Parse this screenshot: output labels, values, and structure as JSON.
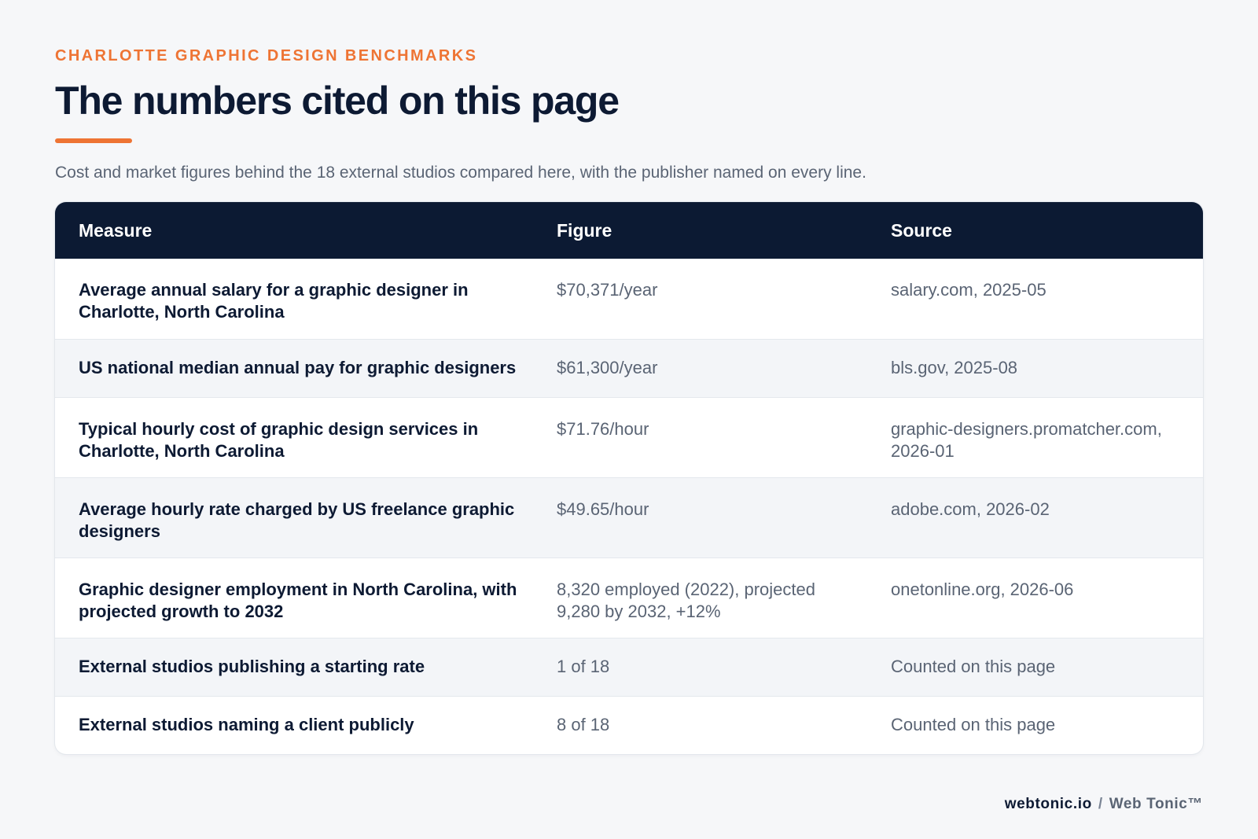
{
  "header": {
    "eyebrow": "CHARLOTTE GRAPHIC DESIGN BENCHMARKS",
    "title": "The numbers cited on this page",
    "subtitle": "Cost and market figures behind the 18 external studios compared here, with the publisher named on every line."
  },
  "table": {
    "columns": [
      "Measure",
      "Figure",
      "Source"
    ],
    "rows": [
      {
        "measure": "Average annual salary for a graphic designer in Charlotte, North Carolina",
        "figure": "$70,371/year",
        "source": "salary.com, 2025-05"
      },
      {
        "measure": "US national median annual pay for graphic designers",
        "figure": "$61,300/year",
        "source": "bls.gov, 2025-08"
      },
      {
        "measure": "Typical hourly cost of graphic design services in Charlotte, North Carolina",
        "figure": "$71.76/hour",
        "source": "graphic-designers.promatcher.com, 2026-01"
      },
      {
        "measure": "Average hourly rate charged by US freelance graphic designers",
        "figure": "$49.65/hour",
        "source": "adobe.com, 2026-02"
      },
      {
        "measure": "Graphic designer employment in North Carolina, with projected growth to 2032",
        "figure": "8,320 employed (2022), projected 9,280 by 2032, +12%",
        "source": "onetonline.org, 2026-06"
      },
      {
        "measure": "External studios publishing a starting rate",
        "figure": "1 of 18",
        "source": "Counted on this page"
      },
      {
        "measure": "External studios naming a client publicly",
        "figure": "8 of 18",
        "source": "Counted on this page"
      }
    ]
  },
  "footer": {
    "domain": "webtonic.io",
    "separator": "/",
    "brand": "Web Tonic™"
  }
}
